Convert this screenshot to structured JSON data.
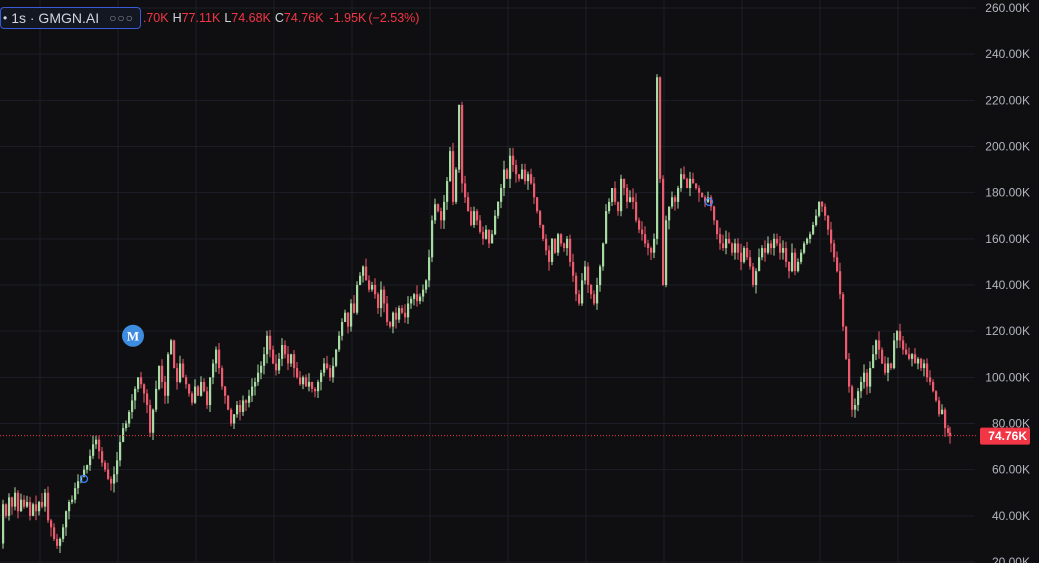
{
  "header": {
    "symbol_prefix": "•",
    "symbol": "1s · GMGN.AI",
    "more_icon": "ellipsis-icon",
    "ohlc": {
      "open_label": "",
      "open_value": ".70K",
      "high_label": "H",
      "high_value": "77.11K",
      "low_label": "L",
      "low_value": "74.68K",
      "close_label": "C",
      "close_value": "74.76K",
      "change": "-1.95K",
      "change_pct": "(−2.53%)"
    }
  },
  "colors": {
    "background": "#0f0f12",
    "grid": "#1c1f27",
    "up": "#a8dba4",
    "down": "#ef5b6e",
    "price_line": "#f23645",
    "marker": "#3b82f6"
  },
  "markers": {
    "m_label": "M"
  },
  "chart_data": {
    "type": "candlestick",
    "title": "",
    "xlabel": "",
    "ylabel": "",
    "ylim": [
      20000,
      260000
    ],
    "y_ticks": [
      260000,
      240000,
      220000,
      200000,
      180000,
      160000,
      140000,
      120000,
      100000,
      80000,
      60000,
      40000,
      20000
    ],
    "y_tick_labels": [
      "260.00K",
      "240.00K",
      "220.00K",
      "200.00K",
      "180.00K",
      "160.00K",
      "140.00K",
      "120.00K",
      "100.00K",
      "80.00K",
      "60.00K",
      "40.00K",
      "20.00K"
    ],
    "last_price": 74760,
    "last_price_label": "74.76K",
    "grid": true,
    "close_path": [
      [
        0,
        28000
      ],
      [
        3,
        45000
      ],
      [
        6,
        40000
      ],
      [
        9,
        48000
      ],
      [
        12,
        44000
      ],
      [
        15,
        50000
      ],
      [
        18,
        42000
      ],
      [
        21,
        47000
      ],
      [
        24,
        44000
      ],
      [
        27,
        46000
      ],
      [
        30,
        40000
      ],
      [
        33,
        45000
      ],
      [
        36,
        42000
      ],
      [
        39,
        46000
      ],
      [
        42,
        44000
      ],
      [
        45,
        50000
      ],
      [
        48,
        38000
      ],
      [
        51,
        35000
      ],
      [
        54,
        30000
      ],
      [
        57,
        27000
      ],
      [
        60,
        30000
      ],
      [
        63,
        35000
      ],
      [
        66,
        42000
      ],
      [
        69,
        46000
      ],
      [
        72,
        47000
      ],
      [
        75,
        52000
      ],
      [
        78,
        55000
      ],
      [
        81,
        57000
      ],
      [
        84,
        60000
      ],
      [
        87,
        62000
      ],
      [
        90,
        66000
      ],
      [
        93,
        71000
      ],
      [
        96,
        73000
      ],
      [
        99,
        68000
      ],
      [
        102,
        63000
      ],
      [
        105,
        60000
      ],
      [
        108,
        56000
      ],
      [
        111,
        54000
      ],
      [
        114,
        58000
      ],
      [
        117,
        64000
      ],
      [
        120,
        72000
      ],
      [
        123,
        78000
      ],
      [
        126,
        80000
      ],
      [
        129,
        85000
      ],
      [
        132,
        90000
      ],
      [
        135,
        95000
      ],
      [
        138,
        100000
      ],
      [
        141,
        97000
      ],
      [
        144,
        93000
      ],
      [
        147,
        88000
      ],
      [
        150,
        76000
      ],
      [
        153,
        86000
      ],
      [
        156,
        95000
      ],
      [
        159,
        105000
      ],
      [
        162,
        98000
      ],
      [
        165,
        92000
      ],
      [
        168,
        110000
      ],
      [
        171,
        116000
      ],
      [
        174,
        104000
      ],
      [
        177,
        98000
      ],
      [
        180,
        106000
      ],
      [
        183,
        100000
      ],
      [
        186,
        97000
      ],
      [
        189,
        93000
      ],
      [
        192,
        89000
      ],
      [
        195,
        96000
      ],
      [
        198,
        92000
      ],
      [
        201,
        98000
      ],
      [
        204,
        94000
      ],
      [
        207,
        88000
      ],
      [
        210,
        100000
      ],
      [
        213,
        106000
      ],
      [
        216,
        112000
      ],
      [
        219,
        104000
      ],
      [
        222,
        96000
      ],
      [
        225,
        92000
      ],
      [
        228,
        86000
      ],
      [
        231,
        80000
      ],
      [
        234,
        84000
      ],
      [
        237,
        88000
      ],
      [
        240,
        85000
      ],
      [
        243,
        90000
      ],
      [
        246,
        89000
      ],
      [
        249,
        92000
      ],
      [
        252,
        96000
      ],
      [
        255,
        98000
      ],
      [
        258,
        102000
      ],
      [
        261,
        105000
      ],
      [
        264,
        110000
      ],
      [
        267,
        118000
      ],
      [
        270,
        112000
      ],
      [
        273,
        106000
      ],
      [
        276,
        103000
      ],
      [
        279,
        108000
      ],
      [
        282,
        114000
      ],
      [
        285,
        110000
      ],
      [
        288,
        106000
      ],
      [
        291,
        110000
      ],
      [
        294,
        104000
      ],
      [
        297,
        100000
      ],
      [
        300,
        97000
      ],
      [
        303,
        100000
      ],
      [
        306,
        96000
      ],
      [
        309,
        98000
      ],
      [
        312,
        95000
      ],
      [
        315,
        94000
      ],
      [
        318,
        98000
      ],
      [
        321,
        102000
      ],
      [
        324,
        106000
      ],
      [
        327,
        104000
      ],
      [
        330,
        100000
      ],
      [
        333,
        105000
      ],
      [
        336,
        112000
      ],
      [
        339,
        118000
      ],
      [
        342,
        124000
      ],
      [
        345,
        128000
      ],
      [
        348,
        122000
      ],
      [
        351,
        132000
      ],
      [
        354,
        128000
      ],
      [
        357,
        140000
      ],
      [
        360,
        144000
      ],
      [
        363,
        148000
      ],
      [
        366,
        142000
      ],
      [
        369,
        138000
      ],
      [
        372,
        140000
      ],
      [
        375,
        136000
      ],
      [
        378,
        130000
      ],
      [
        381,
        138000
      ],
      [
        384,
        132000
      ],
      [
        387,
        124000
      ],
      [
        390,
        122000
      ],
      [
        393,
        128000
      ],
      [
        396,
        125000
      ],
      [
        399,
        130000
      ],
      [
        402,
        128000
      ],
      [
        405,
        126000
      ],
      [
        408,
        132000
      ],
      [
        411,
        134000
      ],
      [
        414,
        136000
      ],
      [
        417,
        133000
      ],
      [
        420,
        135000
      ],
      [
        423,
        138000
      ],
      [
        426,
        142000
      ],
      [
        429,
        152000
      ],
      [
        432,
        168000
      ],
      [
        435,
        175000
      ],
      [
        438,
        172000
      ],
      [
        441,
        168000
      ],
      [
        444,
        176000
      ],
      [
        447,
        185000
      ],
      [
        450,
        198000
      ],
      [
        453,
        176000
      ],
      [
        456,
        190000
      ],
      [
        459,
        218000
      ],
      [
        462,
        184000
      ],
      [
        465,
        178000
      ],
      [
        468,
        172000
      ],
      [
        471,
        166000
      ],
      [
        474,
        172000
      ],
      [
        477,
        168000
      ],
      [
        480,
        163000
      ],
      [
        483,
        160000
      ],
      [
        486,
        164000
      ],
      [
        489,
        158000
      ],
      [
        492,
        162000
      ],
      [
        495,
        170000
      ],
      [
        498,
        176000
      ],
      [
        501,
        182000
      ],
      [
        504,
        190000
      ],
      [
        507,
        186000
      ],
      [
        510,
        196000
      ],
      [
        513,
        192000
      ],
      [
        516,
        188000
      ],
      [
        519,
        186000
      ],
      [
        522,
        190000
      ],
      [
        525,
        185000
      ],
      [
        528,
        188000
      ],
      [
        531,
        184000
      ],
      [
        534,
        178000
      ],
      [
        537,
        172000
      ],
      [
        540,
        166000
      ],
      [
        543,
        160000
      ],
      [
        546,
        155000
      ],
      [
        549,
        150000
      ],
      [
        552,
        160000
      ],
      [
        555,
        154000
      ],
      [
        558,
        162000
      ],
      [
        561,
        158000
      ],
      [
        564,
        156000
      ],
      [
        567,
        160000
      ],
      [
        570,
        150000
      ],
      [
        573,
        144000
      ],
      [
        576,
        136000
      ],
      [
        579,
        132000
      ],
      [
        582,
        142000
      ],
      [
        585,
        148000
      ],
      [
        588,
        140000
      ],
      [
        591,
        136000
      ],
      [
        594,
        132000
      ],
      [
        597,
        140000
      ],
      [
        600,
        148000
      ],
      [
        603,
        158000
      ],
      [
        606,
        172000
      ],
      [
        609,
        176000
      ],
      [
        612,
        182000
      ],
      [
        615,
        176000
      ],
      [
        618,
        172000
      ],
      [
        621,
        186000
      ],
      [
        624,
        182000
      ],
      [
        627,
        176000
      ],
      [
        630,
        178000
      ],
      [
        633,
        176000
      ],
      [
        636,
        168000
      ],
      [
        639,
        164000
      ],
      [
        642,
        162000
      ],
      [
        645,
        158000
      ],
      [
        648,
        156000
      ],
      [
        651,
        154000
      ],
      [
        654,
        160000
      ],
      [
        657,
        230000
      ],
      [
        660,
        186000
      ],
      [
        663,
        140000
      ],
      [
        666,
        168000
      ],
      [
        669,
        174000
      ],
      [
        672,
        178000
      ],
      [
        675,
        176000
      ],
      [
        678,
        182000
      ],
      [
        681,
        188000
      ],
      [
        684,
        186000
      ],
      [
        687,
        182000
      ],
      [
        690,
        186000
      ],
      [
        693,
        184000
      ],
      [
        696,
        182000
      ],
      [
        699,
        180000
      ],
      [
        702,
        178000
      ],
      [
        705,
        176000
      ],
      [
        708,
        178000
      ],
      [
        711,
        174000
      ],
      [
        714,
        168000
      ],
      [
        717,
        162000
      ],
      [
        720,
        158000
      ],
      [
        723,
        156000
      ],
      [
        726,
        160000
      ],
      [
        729,
        158000
      ],
      [
        732,
        154000
      ],
      [
        735,
        158000
      ],
      [
        738,
        154000
      ],
      [
        741,
        150000
      ],
      [
        744,
        156000
      ],
      [
        747,
        152000
      ],
      [
        750,
        148000
      ],
      [
        753,
        140000
      ],
      [
        756,
        146000
      ],
      [
        759,
        152000
      ],
      [
        762,
        156000
      ],
      [
        765,
        154000
      ],
      [
        768,
        158000
      ],
      [
        771,
        156000
      ],
      [
        774,
        160000
      ],
      [
        777,
        158000
      ],
      [
        780,
        154000
      ],
      [
        783,
        156000
      ],
      [
        786,
        150000
      ],
      [
        789,
        146000
      ],
      [
        792,
        154000
      ],
      [
        795,
        146000
      ],
      [
        798,
        150000
      ],
      [
        801,
        154000
      ],
      [
        804,
        158000
      ],
      [
        807,
        160000
      ],
      [
        810,
        162000
      ],
      [
        813,
        166000
      ],
      [
        816,
        170000
      ],
      [
        819,
        176000
      ],
      [
        822,
        174000
      ],
      [
        825,
        170000
      ],
      [
        828,
        164000
      ],
      [
        831,
        158000
      ],
      [
        834,
        152000
      ],
      [
        837,
        146000
      ],
      [
        840,
        136000
      ],
      [
        843,
        122000
      ],
      [
        846,
        108000
      ],
      [
        849,
        96000
      ],
      [
        852,
        86000
      ],
      [
        855,
        88000
      ],
      [
        858,
        94000
      ],
      [
        861,
        98000
      ],
      [
        864,
        102000
      ],
      [
        867,
        96000
      ],
      [
        870,
        104000
      ],
      [
        873,
        110000
      ],
      [
        876,
        116000
      ],
      [
        879,
        112000
      ],
      [
        882,
        106000
      ],
      [
        885,
        102000
      ],
      [
        888,
        106000
      ],
      [
        891,
        104000
      ],
      [
        894,
        116000
      ],
      [
        897,
        120000
      ],
      [
        900,
        116000
      ],
      [
        903,
        112000
      ],
      [
        906,
        110000
      ],
      [
        909,
        108000
      ],
      [
        912,
        110000
      ],
      [
        915,
        106000
      ],
      [
        918,
        108000
      ],
      [
        921,
        104000
      ],
      [
        924,
        106000
      ],
      [
        927,
        100000
      ],
      [
        930,
        98000
      ],
      [
        933,
        94000
      ],
      [
        936,
        90000
      ],
      [
        939,
        84000
      ],
      [
        942,
        86000
      ],
      [
        945,
        78000
      ],
      [
        948,
        76000
      ],
      [
        950,
        74760
      ]
    ],
    "annotations": [
      {
        "kind": "circle",
        "x": 84,
        "y": 56000
      },
      {
        "kind": "M-badge",
        "x": 133,
        "y": 118000
      },
      {
        "kind": "circle",
        "x": 709,
        "y": 176000
      }
    ]
  }
}
